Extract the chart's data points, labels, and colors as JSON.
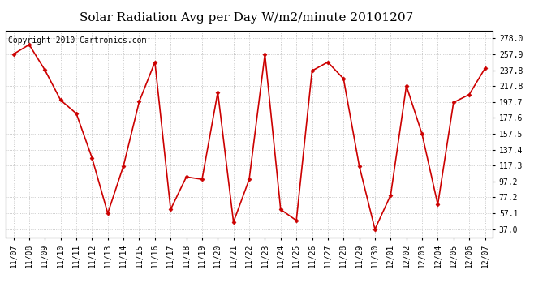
{
  "title": "Solar Radiation Avg per Day W/m2/minute 20101207",
  "copyright": "Copyright 2010 Cartronics.com",
  "dates": [
    "11/07",
    "11/08",
    "11/09",
    "11/10",
    "11/11",
    "11/12",
    "11/13",
    "11/14",
    "11/15",
    "11/16",
    "11/17",
    "11/18",
    "11/19",
    "11/20",
    "11/21",
    "11/22",
    "11/23",
    "11/24",
    "11/25",
    "11/26",
    "11/27",
    "11/28",
    "11/29",
    "11/30",
    "12/01",
    "12/02",
    "12/03",
    "12/04",
    "12/05",
    "12/06",
    "12/07"
  ],
  "values": [
    258.0,
    270.0,
    238.0,
    200.0,
    183.0,
    127.0,
    57.1,
    117.0,
    198.0,
    248.0,
    62.0,
    103.0,
    100.0,
    210.0,
    46.0,
    100.0,
    258.0,
    62.0,
    48.0,
    237.0,
    248.0,
    227.0,
    117.0,
    37.0,
    80.0,
    218.0,
    157.0,
    68.0,
    197.0,
    207.0,
    240.0
  ],
  "yticks": [
    37.0,
    57.1,
    77.2,
    97.2,
    117.3,
    137.4,
    157.5,
    177.6,
    197.7,
    217.8,
    237.8,
    257.9,
    278.0
  ],
  "line_color": "#cc0000",
  "marker_color": "#cc0000",
  "bg_color": "#ffffff",
  "grid_color": "#bbbbbb",
  "title_fontsize": 11,
  "copyright_fontsize": 7,
  "tick_fontsize": 7,
  "ylim": [
    27.0,
    288.0
  ]
}
